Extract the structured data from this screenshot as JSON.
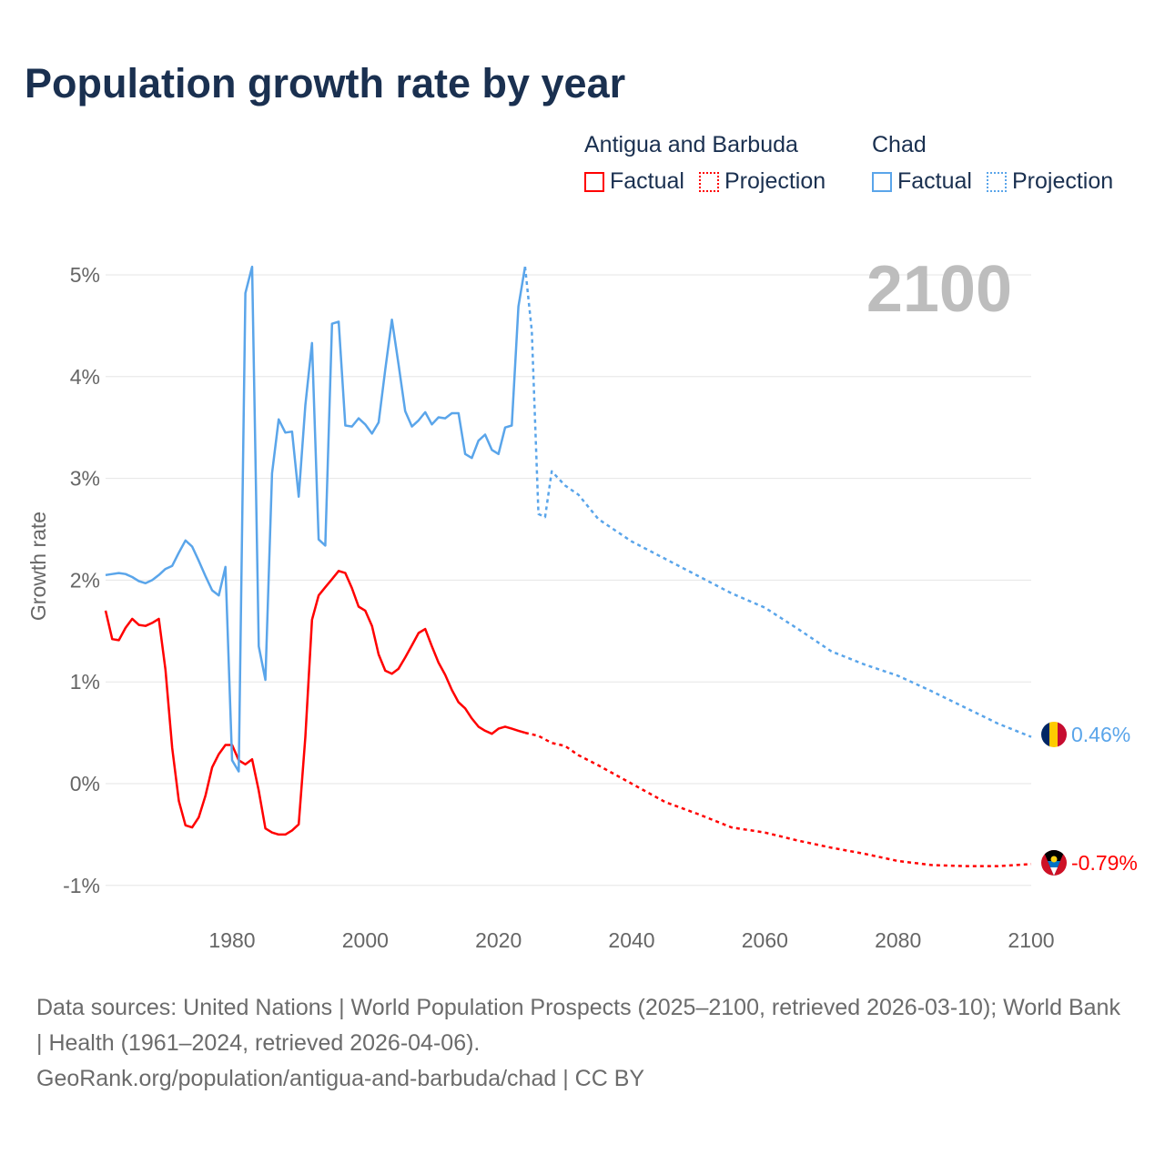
{
  "title": "Population growth rate by year",
  "legend": {
    "groups": [
      {
        "name": "Antigua and Barbuda",
        "color": "#ff0000",
        "factual": "Factual",
        "projection": "Projection"
      },
      {
        "name": "Chad",
        "color": "#5aa5ea",
        "factual": "Factual",
        "projection": "Projection"
      }
    ]
  },
  "year_label": "2100",
  "end_labels": {
    "chad": "0.46%",
    "antigua": "-0.79%"
  },
  "footer": {
    "line1": "Data sources: United Nations | World Population Prospects (2025–2100, retrieved 2026-03-10); World Bank | Health (1961–2024, retrieved 2026-04-06).",
    "line2": "GeoRank.org/population/antigua-and-barbuda/chad | CC BY"
  },
  "chart_data": {
    "type": "line",
    "title": "Population growth rate by year",
    "xlabel": "",
    "ylabel": "Growth rate",
    "xlim": [
      1961,
      2100
    ],
    "ylim": [
      -1.2,
      5.3
    ],
    "xticks": [
      1980,
      2000,
      2020,
      2040,
      2060,
      2080,
      2100
    ],
    "yticks": [
      -1,
      0,
      1,
      2,
      3,
      4,
      5
    ],
    "ytick_labels": [
      "-1%",
      "0%",
      "1%",
      "2%",
      "3%",
      "4%",
      "5%"
    ],
    "grid": true,
    "series": [
      {
        "name": "Antigua and Barbuda",
        "color": "#ff0000",
        "factual": {
          "x": [
            1961,
            1962,
            1963,
            1964,
            1965,
            1966,
            1967,
            1968,
            1969,
            1970,
            1971,
            1972,
            1973,
            1974,
            1975,
            1976,
            1977,
            1978,
            1979,
            1980,
            1981,
            1982,
            1983,
            1984,
            1985,
            1986,
            1987,
            1988,
            1989,
            1990,
            1991,
            1992,
            1993,
            1994,
            1995,
            1996,
            1997,
            1998,
            1999,
            2000,
            2001,
            2002,
            2003,
            2004,
            2005,
            2006,
            2007,
            2008,
            2009,
            2010,
            2011,
            2012,
            2013,
            2014,
            2015,
            2016,
            2017,
            2018,
            2019,
            2020,
            2021,
            2022,
            2023,
            2024
          ],
          "y": [
            1.7,
            1.42,
            1.41,
            1.53,
            1.62,
            1.56,
            1.55,
            1.58,
            1.62,
            1.12,
            0.35,
            -0.17,
            -0.41,
            -0.43,
            -0.33,
            -0.12,
            0.16,
            0.29,
            0.38,
            0.38,
            0.23,
            0.19,
            0.24,
            -0.07,
            -0.44,
            -0.48,
            -0.5,
            -0.5,
            -0.46,
            -0.4,
            0.46,
            1.61,
            1.85,
            1.93,
            2.01,
            2.09,
            2.07,
            1.92,
            1.74,
            1.7,
            1.55,
            1.27,
            1.11,
            1.08,
            1.13,
            1.24,
            1.36,
            1.48,
            1.52,
            1.35,
            1.19,
            1.07,
            0.92,
            0.8,
            0.74,
            0.64,
            0.56,
            0.52,
            0.49,
            0.54,
            0.56,
            0.54,
            0.52,
            0.5
          ]
        },
        "projection": {
          "x": [
            2024,
            2026,
            2028,
            2030,
            2032,
            2035,
            2040,
            2045,
            2050,
            2055,
            2060,
            2065,
            2070,
            2075,
            2080,
            2085,
            2090,
            2095,
            2100
          ],
          "y": [
            0.5,
            0.47,
            0.4,
            0.37,
            0.28,
            0.18,
            0.0,
            -0.18,
            -0.3,
            -0.43,
            -0.48,
            -0.56,
            -0.63,
            -0.69,
            -0.76,
            -0.8,
            -0.81,
            -0.81,
            -0.79
          ]
        }
      },
      {
        "name": "Chad",
        "color": "#5aa5ea",
        "factual": {
          "x": [
            1961,
            1962,
            1963,
            1964,
            1965,
            1966,
            1967,
            1968,
            1969,
            1970,
            1971,
            1972,
            1973,
            1974,
            1975,
            1976,
            1977,
            1978,
            1979,
            1980,
            1981,
            1982,
            1983,
            1984,
            1985,
            1986,
            1987,
            1988,
            1989,
            1990,
            1991,
            1992,
            1993,
            1994,
            1995,
            1996,
            1997,
            1998,
            1999,
            2000,
            2001,
            2002,
            2003,
            2004,
            2005,
            2006,
            2007,
            2008,
            2009,
            2010,
            2011,
            2012,
            2013,
            2014,
            2015,
            2016,
            2017,
            2018,
            2019,
            2020,
            2021,
            2022,
            2023,
            2024
          ],
          "y": [
            2.05,
            2.06,
            2.07,
            2.06,
            2.03,
            1.99,
            1.97,
            2.0,
            2.05,
            2.11,
            2.14,
            2.27,
            2.39,
            2.33,
            2.19,
            2.04,
            1.9,
            1.85,
            2.13,
            0.23,
            0.12,
            4.82,
            5.08,
            1.35,
            1.02,
            3.05,
            3.58,
            3.45,
            3.46,
            2.82,
            3.72,
            4.33,
            2.4,
            2.34,
            4.52,
            4.54,
            3.52,
            3.51,
            3.59,
            3.53,
            3.44,
            3.55,
            4.07,
            4.56,
            4.12,
            3.66,
            3.51,
            3.57,
            3.65,
            3.53,
            3.6,
            3.59,
            3.64,
            3.64,
            3.24,
            3.2,
            3.37,
            3.43,
            3.28,
            3.24,
            3.5,
            3.52,
            4.69,
            5.08
          ]
        },
        "projection": {
          "x": [
            2024,
            2025,
            2026,
            2027,
            2028,
            2030,
            2032,
            2035,
            2040,
            2045,
            2050,
            2055,
            2060,
            2065,
            2070,
            2075,
            2080,
            2085,
            2090,
            2095,
            2100
          ],
          "y": [
            5.08,
            4.45,
            2.65,
            2.62,
            3.07,
            2.93,
            2.84,
            2.6,
            2.38,
            2.21,
            2.04,
            1.87,
            1.73,
            1.52,
            1.3,
            1.17,
            1.06,
            0.91,
            0.75,
            0.59,
            0.46
          ]
        }
      }
    ]
  }
}
